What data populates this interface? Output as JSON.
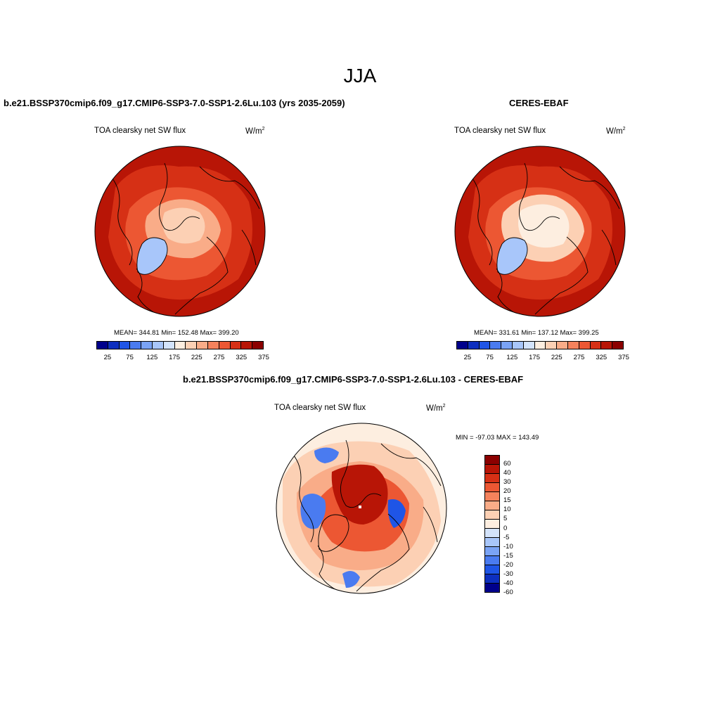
{
  "figure": {
    "season": "JJA"
  },
  "panels": [
    {
      "title": "b.e21.BSSP370cmip6.f09_g17.CMIP6-SSP3-7.0-SSP1-2.6Lu.103 (yrs 2035-2059)",
      "variable": "TOA clearsky net SW flux",
      "units": "W/m",
      "units_sup": "2",
      "stats": "MEAN= 344.81   Min= 152.48   Max= 399.20",
      "colorbar": {
        "colors": [
          "#00008b",
          "#0d2fbf",
          "#1f55e6",
          "#4a7bf0",
          "#7aa3f5",
          "#a8c6fa",
          "#d3e3fb",
          "#fdeee0",
          "#fcd0b4",
          "#f9ac88",
          "#f5825c",
          "#ec5733",
          "#d63015",
          "#b81506",
          "#8b0000"
        ],
        "ticks": [
          "25",
          "75",
          "125",
          "175",
          "225",
          "275",
          "325",
          "375"
        ]
      },
      "map": {
        "type": "north-polar-stereographic",
        "field_colors": {
          "outer": "#b81506",
          "mid": "#d63015",
          "inner": "#ec5733",
          "arctic": "#f9ac88",
          "icecap": "#fcd0b4",
          "pole": "#fdeee0",
          "greenland": "#a8c6fa"
        }
      }
    },
    {
      "title": "CERES-EBAF",
      "variable": "TOA clearsky net SW flux",
      "units": "W/m",
      "units_sup": "2",
      "stats": "MEAN= 331.61   Min= 137.12   Max= 399.25",
      "colorbar": {
        "colors": [
          "#00008b",
          "#0d2fbf",
          "#1f55e6",
          "#4a7bf0",
          "#7aa3f5",
          "#a8c6fa",
          "#d3e3fb",
          "#fdeee0",
          "#fcd0b4",
          "#f9ac88",
          "#f5825c",
          "#ec5733",
          "#d63015",
          "#b81506",
          "#8b0000"
        ],
        "ticks": [
          "25",
          "75",
          "125",
          "175",
          "225",
          "275",
          "325",
          "375"
        ]
      },
      "map": {
        "type": "north-polar-stereographic",
        "field_colors": {
          "outer": "#b81506",
          "mid": "#d63015",
          "inner": "#ec5733",
          "arctic": "#fcd0b4",
          "icecap": "#fdeee0",
          "pole": "#fdeee0",
          "greenland": "#a8c6fa"
        }
      }
    },
    {
      "title": "b.e21.BSSP370cmip6.f09_g17.CMIP6-SSP3-7.0-SSP1-2.6Lu.103 - CERES-EBAF",
      "variable": "TOA clearsky net SW flux",
      "units": "W/m",
      "units_sup": "2",
      "stats": "MIN = -97.03  MAX = 143.49",
      "colorbar": {
        "colors": [
          "#8b0000",
          "#b81506",
          "#d63015",
          "#ec5733",
          "#f5825c",
          "#f9ac88",
          "#fcd0b4",
          "#fdeee0",
          "#d3e3fb",
          "#a8c6fa",
          "#7aa3f5",
          "#4a7bf0",
          "#1f55e6",
          "#0d2fbf",
          "#00008b"
        ],
        "ticks": [
          "60",
          "40",
          "30",
          "20",
          "15",
          "10",
          "5",
          "0",
          "-5",
          "-10",
          "-15",
          "-20",
          "-30",
          "-40",
          "-60"
        ]
      },
      "map": {
        "type": "north-polar-stereographic",
        "field_colors": {
          "background": "#fdeee0",
          "light": "#fcd0b4",
          "mid": "#f9ac88",
          "strong": "#ec5733",
          "arctic": "#b81506",
          "blue": "#4a7bf0",
          "darkblue": "#1f55e6"
        }
      }
    }
  ]
}
